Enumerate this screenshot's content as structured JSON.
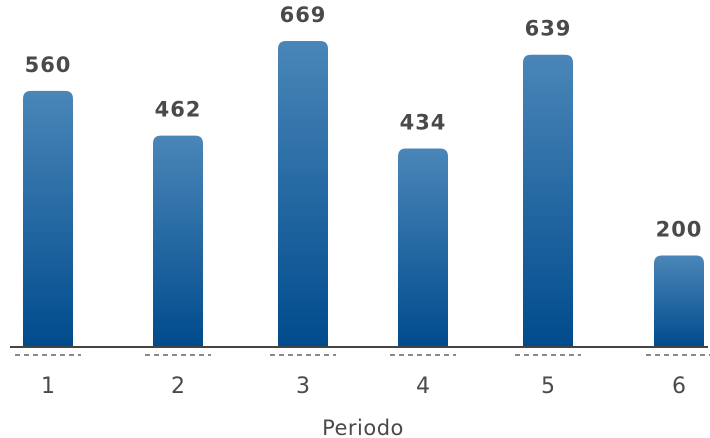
{
  "chart_data": {
    "type": "bar",
    "title": "",
    "xlabel": "Periodo",
    "ylabel": "",
    "categories": [
      "1",
      "2",
      "3",
      "4",
      "5",
      "6"
    ],
    "values": [
      560,
      462,
      669,
      434,
      639,
      200
    ],
    "ylim": [
      0,
      669
    ],
    "grid": false,
    "legend": "none",
    "data_labels": true,
    "colors": {
      "bar_top": "#4a86b8",
      "bar_bottom": "#004b8d",
      "axis": "#444444",
      "tick_dash": "#8a8a8a",
      "text": "#4a4a4a"
    }
  }
}
